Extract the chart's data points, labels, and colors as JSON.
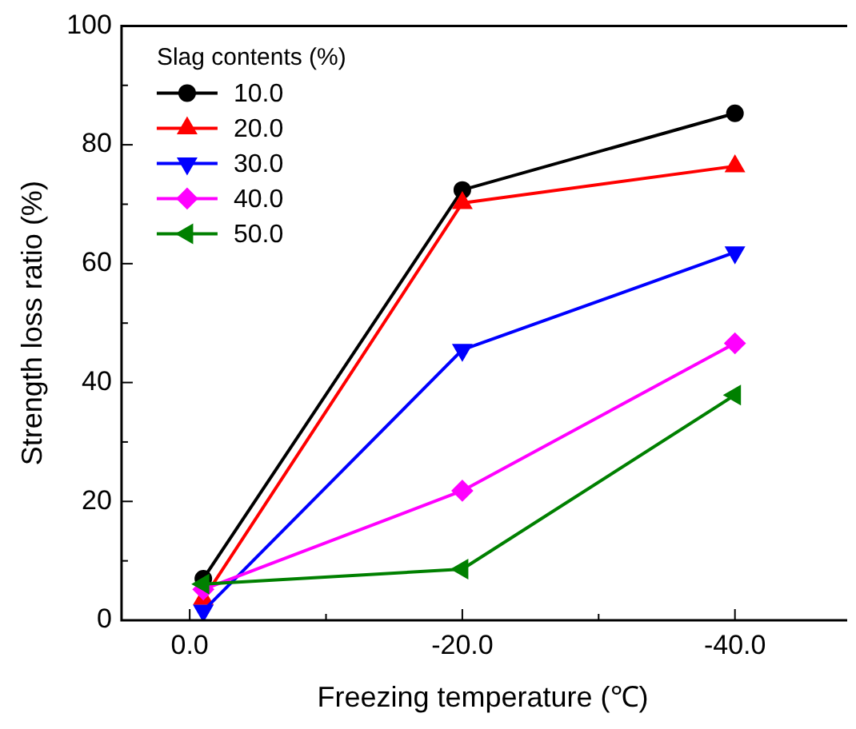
{
  "chart_data": {
    "type": "line",
    "xlabel": "Freezing temperature (℃)",
    "ylabel": "Strength loss ratio (%)",
    "legend_title": "Slag contents (%)",
    "legend": "top left",
    "grid": false,
    "x": [
      -1,
      -20,
      -40
    ],
    "xlim": [
      5,
      -48
    ],
    "xticks": [
      {
        "value": 0,
        "label": "0.0"
      },
      {
        "value": -10,
        "label": null
      },
      {
        "value": -20,
        "label": "-20.0"
      },
      {
        "value": -30,
        "label": null
      },
      {
        "value": -40,
        "label": "-40.0"
      }
    ],
    "ylim": [
      0,
      100
    ],
    "yticks": [
      0,
      {
        "value": 10,
        "label": null
      },
      20,
      {
        "value": 30,
        "label": null
      },
      40,
      {
        "value": 50,
        "label": null
      },
      60,
      {
        "value": 70,
        "label": null
      },
      80,
      {
        "value": 90,
        "label": null
      },
      100
    ],
    "series": [
      {
        "name": "10.0",
        "color": "#000000",
        "marker": "circle",
        "values": [
          7.0,
          72.4,
          85.3
        ]
      },
      {
        "name": "20.0",
        "color": "#ff0000",
        "marker": "triangle",
        "values": [
          3.6,
          70.2,
          76.4
        ]
      },
      {
        "name": "30.0",
        "color": "#0000ff",
        "marker": "triangle-down",
        "values": [
          1.6,
          45.5,
          61.9
        ]
      },
      {
        "name": "40.0",
        "color": "#ff00ff",
        "marker": "diamond",
        "values": [
          5.2,
          21.8,
          46.6
        ]
      },
      {
        "name": "50.0",
        "color": "#008000",
        "marker": "triangle-left",
        "values": [
          6.1,
          8.6,
          37.9
        ]
      }
    ]
  }
}
